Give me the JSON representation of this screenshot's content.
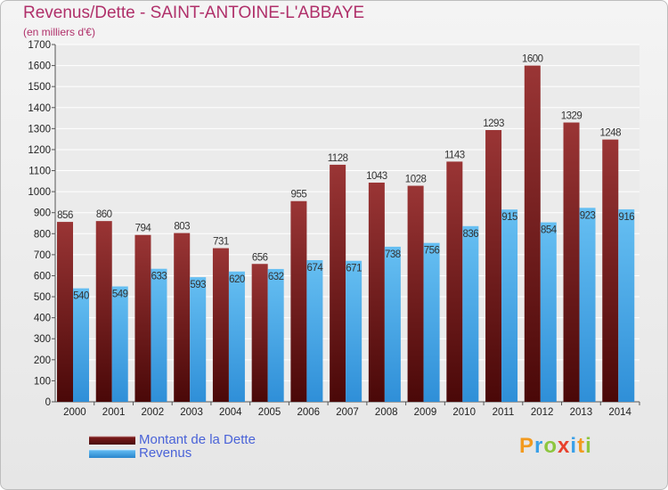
{
  "header": {
    "title": "Revenus/Dette - SAINT-ANTOINE-L'ABBAYE",
    "subtitle": "(en milliers d'€)"
  },
  "colors": {
    "title": "#b0306a",
    "debt_bar": "#7a1b1b",
    "revenue_bar": "#3aa0e8",
    "legend_text": "#4a63d8"
  },
  "legend": {
    "items": [
      {
        "label": "Montant de la Dette",
        "color": "#7a1b1b"
      },
      {
        "label": "Revenus",
        "color": "#3aa0e8"
      }
    ]
  },
  "logo": {
    "text": "Proxiti",
    "letters": [
      {
        "ch": "P",
        "color": "#f29a1f"
      },
      {
        "ch": "r",
        "color": "#3aa0e8"
      },
      {
        "ch": "o",
        "color": "#8dc63f"
      },
      {
        "ch": "x",
        "color": "#e8412d"
      },
      {
        "ch": "i",
        "color": "#3aa0e8"
      },
      {
        "ch": "t",
        "color": "#f29a1f"
      },
      {
        "ch": "i",
        "color": "#8dc63f"
      }
    ]
  },
  "chart_data": {
    "type": "bar",
    "title": "Revenus/Dette - SAINT-ANTOINE-L'ABBAYE",
    "subtitle": "(en milliers d'€)",
    "xlabel": "",
    "ylabel": "",
    "ylim": [
      0,
      1700
    ],
    "yticks": [
      0,
      100,
      200,
      300,
      400,
      500,
      600,
      700,
      800,
      900,
      1000,
      1100,
      1200,
      1300,
      1400,
      1500,
      1600,
      1700
    ],
    "grid": true,
    "legend_position": "bottom-left",
    "categories": [
      "2000",
      "2001",
      "2002",
      "2003",
      "2004",
      "2005",
      "2006",
      "2007",
      "2008",
      "2009",
      "2010",
      "2011",
      "2012",
      "2013",
      "2014"
    ],
    "series": [
      {
        "name": "Montant de la Dette",
        "color": "#7a1b1b",
        "values": [
          856,
          860,
          794,
          803,
          731,
          656,
          955,
          1128,
          1043,
          1028,
          1143,
          1293,
          1600,
          1329,
          1248
        ]
      },
      {
        "name": "Revenus",
        "color": "#3aa0e8",
        "values": [
          540,
          549,
          633,
          593,
          620,
          632,
          674,
          671,
          738,
          756,
          836,
          915,
          854,
          923,
          916
        ]
      }
    ]
  }
}
